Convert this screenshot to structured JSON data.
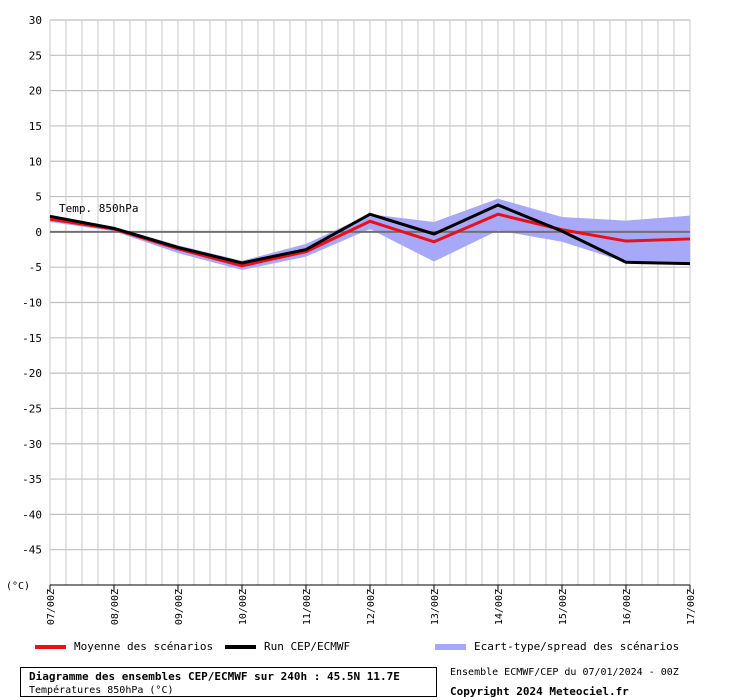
{
  "chart_data": {
    "type": "line",
    "title": "Diagramme des ensembles CEP/ECMWF sur 240h : 45.5N 11.7E",
    "subtitle": "Températures 850hPa (°C)",
    "ylabel": "(°C)",
    "annotation": "Temp. 850hPa",
    "ylim": [
      -50,
      30
    ],
    "yticks": [
      30,
      25,
      20,
      15,
      10,
      5,
      0,
      -5,
      -10,
      -15,
      -20,
      -25,
      -30,
      -35,
      -40,
      -45
    ],
    "categories": [
      "07/00Z",
      "08/00Z",
      "09/00Z",
      "10/00Z",
      "11/00Z",
      "12/00Z",
      "13/00Z",
      "14/00Z",
      "15/00Z",
      "16/00Z",
      "17/00Z"
    ],
    "x": [
      0,
      6,
      12,
      18,
      24,
      30,
      36,
      42,
      48,
      54,
      60,
      66,
      72,
      78,
      84,
      90,
      96,
      102,
      108,
      114,
      120,
      126,
      132,
      138,
      144,
      150,
      156,
      162,
      168,
      174,
      180,
      186,
      192,
      198,
      204,
      210,
      216,
      222,
      228,
      234,
      240
    ],
    "grid": true,
    "series": [
      {
        "name": "Moyenne des scénarios",
        "color": "#e8101c",
        "x": [
          0,
          24,
          48,
          72,
          96,
          120,
          144,
          168,
          192,
          216,
          240
        ],
        "values": [
          1.8,
          0.4,
          -2.4,
          -4.8,
          -2.8,
          1.5,
          -1.4,
          2.5,
          0.3,
          -1.3,
          -1.0
        ]
      },
      {
        "name": "Run CEP/ECMWF",
        "color": "#000000",
        "x": [
          0,
          24,
          48,
          72,
          96,
          120,
          144,
          168,
          192,
          216,
          240
        ],
        "values": [
          2.2,
          0.5,
          -2.2,
          -4.4,
          -2.5,
          2.5,
          -0.3,
          3.8,
          0.1,
          -4.3,
          -4.5
        ]
      },
      {
        "name": "Ecart-type/spread des scénarios",
        "color": "#a8a8f8",
        "x": [
          0,
          24,
          48,
          72,
          96,
          120,
          144,
          168,
          192,
          216,
          240
        ],
        "upper": [
          2.1,
          0.7,
          -1.9,
          -4.1,
          -1.7,
          2.5,
          1.4,
          4.7,
          2.1,
          1.6,
          2.3
        ],
        "lower": [
          1.4,
          0.1,
          -3.0,
          -5.4,
          -3.5,
          0.4,
          -4.2,
          0.2,
          -1.4,
          -4.3,
          -4.3
        ]
      }
    ]
  },
  "legend": {
    "mean_label": "Moyenne des scénarios",
    "run_label": "Run CEP/ECMWF",
    "spread_label": "Ecart-type/spread des scénarios"
  },
  "footer": {
    "title": "Diagramme des ensembles CEP/ECMWF sur 240h : 45.5N 11.7E",
    "subtitle": "Températures 850hPa (°C)",
    "run_info": "Ensemble ECMWF/CEP du 07/01/2024 - 00Z",
    "copyright": "Copyright 2024 Meteociel.fr"
  }
}
